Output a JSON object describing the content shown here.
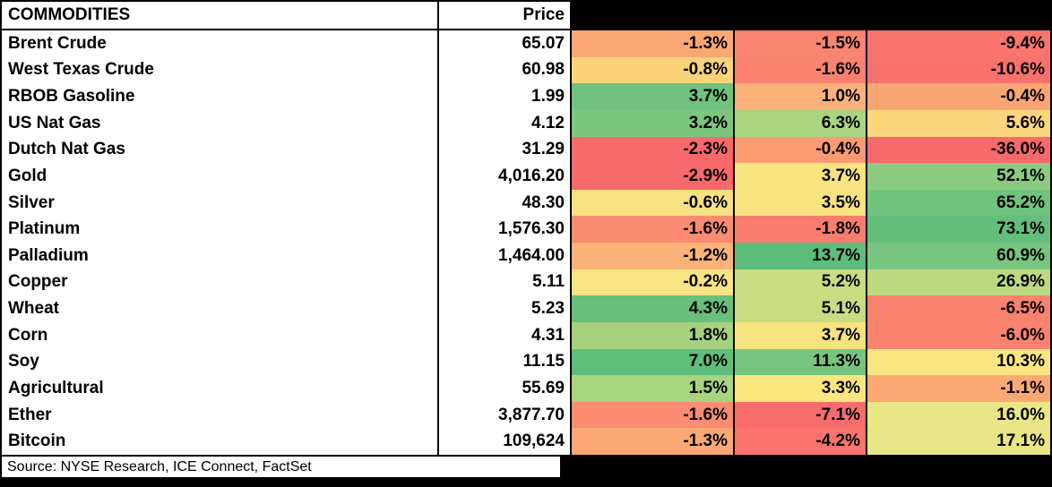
{
  "table": {
    "commodities_header": "COMMODITIES",
    "price_header": "Price",
    "change_headers": [
      {
        "label": "",
        "redacted": true
      },
      {
        "label": "",
        "redacted": true
      },
      {
        "label": "",
        "redacted": true
      }
    ],
    "rows": [
      {
        "name": "Brent Crude",
        "price": "65.07",
        "changes": [
          {
            "value": "-1.3%",
            "color": "#FAA873"
          },
          {
            "value": "-1.5%",
            "color": "#F9846F"
          },
          {
            "value": "-9.4%",
            "color": "#F8756E"
          }
        ]
      },
      {
        "name": "West Texas Crude",
        "price": "60.98",
        "changes": [
          {
            "value": "-0.8%",
            "color": "#FBD47A"
          },
          {
            "value": "-1.6%",
            "color": "#F98270"
          },
          {
            "value": "-10.6%",
            "color": "#F8726D"
          }
        ]
      },
      {
        "name": "RBOB Gasoline",
        "price": "1.99",
        "changes": [
          {
            "value": "3.7%",
            "color": "#70C27E"
          },
          {
            "value": "1.0%",
            "color": "#FBB179"
          },
          {
            "value": "-0.4%",
            "color": "#FAA674"
          }
        ]
      },
      {
        "name": "US Nat Gas",
        "price": "4.12",
        "changes": [
          {
            "value": "3.2%",
            "color": "#7CC67E"
          },
          {
            "value": "6.3%",
            "color": "#AAD47F"
          },
          {
            "value": "5.6%",
            "color": "#FCD67D"
          }
        ]
      },
      {
        "name": "Dutch Nat Gas",
        "price": "31.29",
        "changes": [
          {
            "value": "-2.3%",
            "color": "#F8696C"
          },
          {
            "value": "-0.4%",
            "color": "#FA9B72"
          },
          {
            "value": "-36.0%",
            "color": "#F8696B"
          }
        ]
      },
      {
        "name": "Gold",
        "price": "4,016.20",
        "changes": [
          {
            "value": "-2.9%",
            "color": "#F8696B"
          },
          {
            "value": "3.7%",
            "color": "#F7E37F"
          },
          {
            "value": "52.1%",
            "color": "#8BCB80"
          }
        ]
      },
      {
        "name": "Silver",
        "price": "48.30",
        "changes": [
          {
            "value": "-0.6%",
            "color": "#F8E180"
          },
          {
            "value": "3.5%",
            "color": "#F8E380"
          },
          {
            "value": "65.2%",
            "color": "#6FC37D"
          }
        ]
      },
      {
        "name": "Platinum",
        "price": "1,576.30",
        "changes": [
          {
            "value": "-1.6%",
            "color": "#F98C72"
          },
          {
            "value": "-1.8%",
            "color": "#F87D6E"
          },
          {
            "value": "73.1%",
            "color": "#63BE7B"
          }
        ]
      },
      {
        "name": "Palladium",
        "price": "1,464.00",
        "changes": [
          {
            "value": "-1.2%",
            "color": "#FBB278"
          },
          {
            "value": "13.7%",
            "color": "#5DBE7B"
          },
          {
            "value": "60.9%",
            "color": "#77C57E"
          }
        ]
      },
      {
        "name": "Copper",
        "price": "5.11",
        "changes": [
          {
            "value": "-0.2%",
            "color": "#F7E482"
          },
          {
            "value": "5.2%",
            "color": "#C9DC81"
          },
          {
            "value": "26.9%",
            "color": "#BCD981"
          }
        ]
      },
      {
        "name": "Wheat",
        "price": "5.23",
        "changes": [
          {
            "value": "4.3%",
            "color": "#68C07C"
          },
          {
            "value": "5.1%",
            "color": "#CADC81"
          },
          {
            "value": "-6.5%",
            "color": "#F9826F"
          }
        ]
      },
      {
        "name": "Corn",
        "price": "4.31",
        "changes": [
          {
            "value": "1.8%",
            "color": "#A5D17E"
          },
          {
            "value": "3.7%",
            "color": "#F7E37F"
          },
          {
            "value": "-6.0%",
            "color": "#F9836F"
          }
        ]
      },
      {
        "name": "Soy",
        "price": "11.15",
        "changes": [
          {
            "value": "7.0%",
            "color": "#5FBE7B"
          },
          {
            "value": "11.3%",
            "color": "#76C57E"
          },
          {
            "value": "10.3%",
            "color": "#FAE681"
          }
        ]
      },
      {
        "name": "Agricultural",
        "price": "55.69",
        "changes": [
          {
            "value": "1.5%",
            "color": "#A8D37F"
          },
          {
            "value": "3.3%",
            "color": "#FAE57F"
          },
          {
            "value": "-1.1%",
            "color": "#FBA874"
          }
        ]
      },
      {
        "name": "Ether",
        "price": "3,877.70",
        "changes": [
          {
            "value": "-1.6%",
            "color": "#F98C72"
          },
          {
            "value": "-7.1%",
            "color": "#F86D6C"
          },
          {
            "value": "16.0%",
            "color": "#EAE687"
          }
        ]
      },
      {
        "name": "Bitcoin",
        "price": "109,624",
        "changes": [
          {
            "value": "-1.3%",
            "color": "#FAA873"
          },
          {
            "value": "-4.2%",
            "color": "#F9746D"
          },
          {
            "value": "17.1%",
            "color": "#E9E586"
          }
        ]
      }
    ],
    "source": "Source: NYSE Research, ICE Connect, FactSet"
  },
  "colors": {
    "border": "#000000",
    "cell_background": "#FFFFFF",
    "redacted_header_background": "#000000",
    "heatmap_negative": "#F8696B",
    "heatmap_neutral": "#FFEB84",
    "heatmap_positive": "#63BE7B"
  },
  "chart_data": {
    "type": "table",
    "title": "COMMODITIES",
    "columns": [
      "COMMODITIES",
      "Price",
      "",
      "",
      ""
    ],
    "column_notes": "Three percentage-change column headers are blacked out (redacted); cells use a red-yellow-green heatmap",
    "rows": [
      [
        "Brent Crude",
        65.07,
        -1.3,
        -1.5,
        -9.4
      ],
      [
        "West Texas Crude",
        60.98,
        -0.8,
        -1.6,
        -10.6
      ],
      [
        "RBOB Gasoline",
        1.99,
        3.7,
        1.0,
        -0.4
      ],
      [
        "US Nat Gas",
        4.12,
        3.2,
        6.3,
        5.6
      ],
      [
        "Dutch Nat Gas",
        31.29,
        -2.3,
        -0.4,
        -36.0
      ],
      [
        "Gold",
        4016.2,
        -2.9,
        3.7,
        52.1
      ],
      [
        "Silver",
        48.3,
        -0.6,
        3.5,
        65.2
      ],
      [
        "Platinum",
        1576.3,
        -1.6,
        -1.8,
        73.1
      ],
      [
        "Palladium",
        1464.0,
        -1.2,
        13.7,
        60.9
      ],
      [
        "Copper",
        5.11,
        -0.2,
        5.2,
        26.9
      ],
      [
        "Wheat",
        5.23,
        4.3,
        5.1,
        -6.5
      ],
      [
        "Corn",
        4.31,
        1.8,
        3.7,
        -6.0
      ],
      [
        "Soy",
        11.15,
        7.0,
        11.3,
        10.3
      ],
      [
        "Agricultural",
        55.69,
        1.5,
        3.3,
        -1.1
      ],
      [
        "Ether",
        3877.7,
        -1.6,
        -7.1,
        16.0
      ],
      [
        "Bitcoin",
        109624,
        -1.3,
        -4.2,
        17.1
      ]
    ],
    "source": "Source: NYSE Research, ICE Connect, FactSet"
  }
}
